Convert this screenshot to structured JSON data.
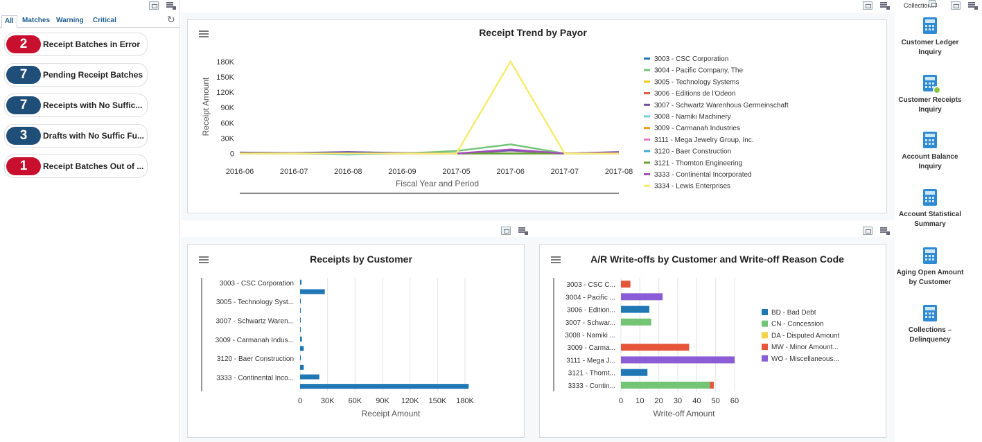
{
  "left_panel": {
    "tabs": [
      "All",
      "Matches",
      "Warning",
      "Critical"
    ],
    "items": [
      {
        "count": "2",
        "label": "Receipt Batches in Error",
        "color": "#c8102e"
      },
      {
        "count": "7",
        "label": "Pending Receipt Batches",
        "color": "#1f4e79"
      },
      {
        "count": "7",
        "label": "Receipts with No Suffic...",
        "color": "#1f4e79"
      },
      {
        "count": "3",
        "label": "Drafts with No Suffic Fu...",
        "color": "#1f4e79"
      },
      {
        "count": "1",
        "label": "Receipt Batches Out of ...",
        "color": "#c8102e"
      }
    ]
  },
  "right_panel": {
    "header": "Collection...",
    "items": [
      {
        "label": "Customer Ledger Inquiry",
        "icon": "calculator-icon"
      },
      {
        "label": "Customer Receipts Inquiry",
        "icon": "calculator-search-icon"
      },
      {
        "label": "Account Balance Inquiry",
        "icon": "calculator-icon"
      },
      {
        "label": "Account Statistical Summary",
        "icon": "calculator-icon"
      },
      {
        "label": "Aging Open Amount by Customer",
        "icon": "calculator-icon"
      },
      {
        "label": "Collections – Delinquency",
        "icon": "calculator-icon"
      }
    ]
  },
  "chart_data": [
    {
      "type": "line",
      "title": "Receipt Trend by Payor",
      "xlabel": "Fiscal Year and Period",
      "ylabel": "Receipt Amount",
      "x": [
        "2016-06",
        "2016-07",
        "2016-08",
        "2016-09",
        "2017-05",
        "2017-06",
        "2017-07",
        "2017-08"
      ],
      "yticks": [
        "0",
        "30K",
        "60K",
        "90K",
        "120K",
        "150K",
        "180K"
      ],
      "ylim": [
        -10000,
        200000
      ],
      "series": [
        {
          "name": "3003 - CSC Corporation",
          "color": "#1f77b4",
          "values": [
            0,
            0,
            0,
            0,
            0,
            0,
            0,
            0
          ]
        },
        {
          "name": "3004 - Pacific Company, The",
          "color": "#74c476",
          "values": [
            0,
            0,
            0,
            0,
            5000,
            18000,
            0,
            0
          ]
        },
        {
          "name": "3005 - Technology Systems",
          "color": "#f5c518",
          "values": [
            0,
            0,
            0,
            0,
            0,
            0,
            0,
            0
          ]
        },
        {
          "name": "3006 - Editions de l'Odeon",
          "color": "#e6553a",
          "values": [
            0,
            0,
            0,
            0,
            0,
            0,
            0,
            0
          ]
        },
        {
          "name": "3007 - Schwartz Warenhous Germeinschaft",
          "color": "#6a51a3",
          "values": [
            2000,
            1000,
            3000,
            1000,
            0,
            6000,
            0,
            3000
          ]
        },
        {
          "name": "3008 - Namiki Machinery",
          "color": "#6dd3d6",
          "values": [
            0,
            0,
            -2000,
            0,
            0,
            0,
            0,
            0
          ]
        },
        {
          "name": "3009 - Carmanah Industries",
          "color": "#f39c12",
          "values": [
            0,
            0,
            0,
            0,
            0,
            0,
            0,
            0
          ]
        },
        {
          "name": "3111 - Mega Jewelry Group, Inc.",
          "color": "#e377c2",
          "values": [
            0,
            0,
            0,
            0,
            0,
            0,
            0,
            0
          ]
        },
        {
          "name": "3120 - Baer Construction",
          "color": "#3fa9dd",
          "values": [
            0,
            0,
            0,
            0,
            0,
            0,
            0,
            0
          ]
        },
        {
          "name": "3121 - Thornton Engineering",
          "color": "#6ba32e",
          "values": [
            0,
            0,
            0,
            0,
            0,
            0,
            0,
            0
          ]
        },
        {
          "name": "3333 - Continental Incorporated",
          "color": "#a04fb8",
          "values": [
            0,
            0,
            0,
            0,
            0,
            8000,
            0,
            2000
          ]
        },
        {
          "name": "3334 - Lewis Enterprises",
          "color": "#f7ec6e",
          "values": [
            0,
            0,
            0,
            0,
            0,
            180000,
            0,
            0
          ]
        }
      ]
    },
    {
      "type": "bar",
      "orientation": "horizontal",
      "title": "Receipts by Customer",
      "xlabel": "Receipt Amount",
      "ylabel": "",
      "xticks": [
        "0",
        "30K",
        "60K",
        "90K",
        "120K",
        "150K",
        "180K"
      ],
      "xlim": [
        0,
        180000
      ],
      "categories": [
        "3003 - CSC Corporation",
        "",
        "3005 - Technology Syst...",
        "",
        "3007 - Schwartz Waren...",
        "",
        "3009 - Carmanah Indus...",
        "",
        "3120 - Baer Construction",
        "",
        "3333 - Continental Inco...",
        ""
      ],
      "values": [
        1500,
        27000,
        500,
        500,
        500,
        500,
        2000,
        4000,
        500,
        4000,
        21000,
        184000
      ],
      "color": "#1f77b4"
    },
    {
      "type": "bar",
      "orientation": "horizontal",
      "stacked": true,
      "title": "A/R Write-offs by Customer and Write-off Reason Code",
      "xlabel": "Write-off Amount",
      "ylabel": "",
      "xticks": [
        "0",
        "10",
        "20",
        "30",
        "40",
        "50",
        "60"
      ],
      "xlim": [
        0,
        60
      ],
      "categories": [
        "3003 - CSC C...",
        "3004 - Pacific ...",
        "3006 - Edition...",
        "3007 - Schwar...",
        "3008 - Namiki ...",
        "3009 - Carma...",
        "3111 - Mega J...",
        "3121 - Thornt...",
        "3333 - Contin..."
      ],
      "legend": [
        {
          "name": "BD - Bad Debt",
          "color": "#1f77b4"
        },
        {
          "name": "CN - Concession",
          "color": "#74c476"
        },
        {
          "name": "DA - Disputed Amount",
          "color": "#f5d547"
        },
        {
          "name": "MW - Minor Amount...",
          "color": "#e6553a"
        },
        {
          "name": "WO - Miscellaneous...",
          "color": "#8a5cd6"
        }
      ],
      "series": [
        {
          "name": "BD - Bad Debt",
          "values": [
            0,
            0,
            15,
            0,
            0,
            0,
            0,
            14,
            0
          ]
        },
        {
          "name": "CN - Concession",
          "values": [
            0,
            0,
            0,
            16,
            0,
            0,
            0,
            0,
            47
          ]
        },
        {
          "name": "DA - Disputed Amount",
          "values": [
            0,
            0,
            0,
            0,
            0,
            0,
            0,
            0,
            0
          ]
        },
        {
          "name": "MW - Minor Amount...",
          "values": [
            5,
            0,
            0,
            0,
            0,
            36,
            0,
            0,
            2
          ]
        },
        {
          "name": "WO - Miscellaneous...",
          "values": [
            0,
            22,
            0,
            0,
            0,
            0,
            60,
            0,
            0
          ]
        }
      ]
    }
  ]
}
